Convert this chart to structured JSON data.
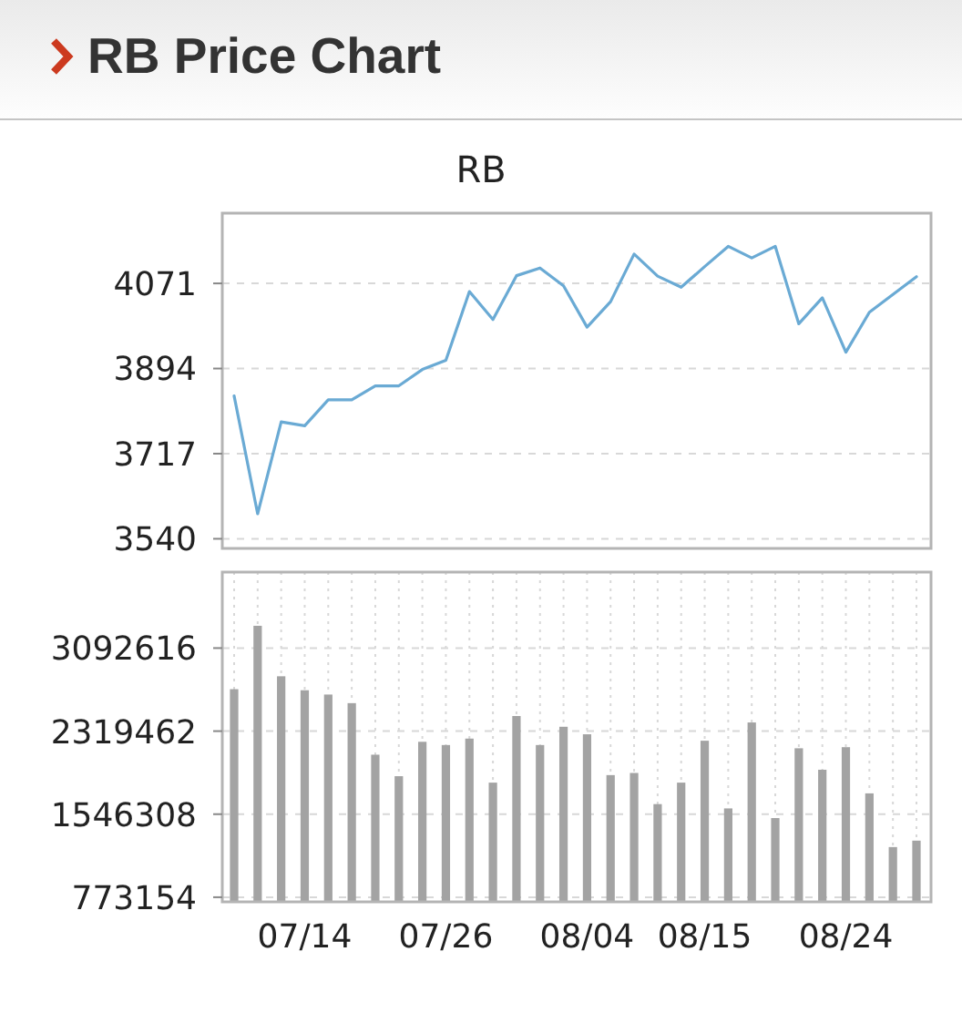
{
  "chart_data": [
    {
      "type": "line",
      "title": "RB Price Chart",
      "subtitle": "RB",
      "categories": [
        null,
        null,
        null,
        null,
        null,
        null,
        null,
        null,
        null,
        null,
        null,
        null,
        null,
        null,
        null,
        null,
        null,
        null,
        null,
        null,
        null,
        null,
        null,
        null,
        null,
        null,
        null,
        null,
        null,
        null
      ],
      "values": [
        3837,
        3592,
        3783,
        3775,
        3829,
        3829,
        3858,
        3858,
        3892,
        3911,
        4054,
        3996,
        4087,
        4103,
        4066,
        3980,
        4033,
        4132,
        4086,
        4063,
        4106,
        4148,
        4124,
        4148,
        3987,
        4041,
        3928,
        4011,
        4048,
        4085
      ],
      "color": "#6aaad4",
      "ylim": [
        3520,
        4217
      ],
      "yticks": [
        3540,
        3717,
        3894,
        4071
      ],
      "grid": "y"
    },
    {
      "type": "bar",
      "categories": [
        null,
        null,
        null,
        "07/14",
        null,
        null,
        null,
        null,
        null,
        "07/26",
        null,
        null,
        null,
        null,
        null,
        "08/04",
        null,
        null,
        null,
        null,
        "08/15",
        null,
        null,
        null,
        null,
        null,
        "08/24",
        null,
        null,
        null
      ],
      "values": [
        2710000,
        3300000,
        2830000,
        2700000,
        2660000,
        2580000,
        2100000,
        1900000,
        2220000,
        2190000,
        2250000,
        1840000,
        2460000,
        2190000,
        2360000,
        2290000,
        1910000,
        1930000,
        1640000,
        1840000,
        2230000,
        1600000,
        2400000,
        1510000,
        2160000,
        1960000,
        2170000,
        1740000,
        1240000,
        1300000
      ],
      "color": "#a3a3a3",
      "ylim": [
        730000,
        3800000
      ],
      "yticks": [
        773154,
        1546308,
        2319462,
        3092616
      ],
      "grid": true
    }
  ]
}
